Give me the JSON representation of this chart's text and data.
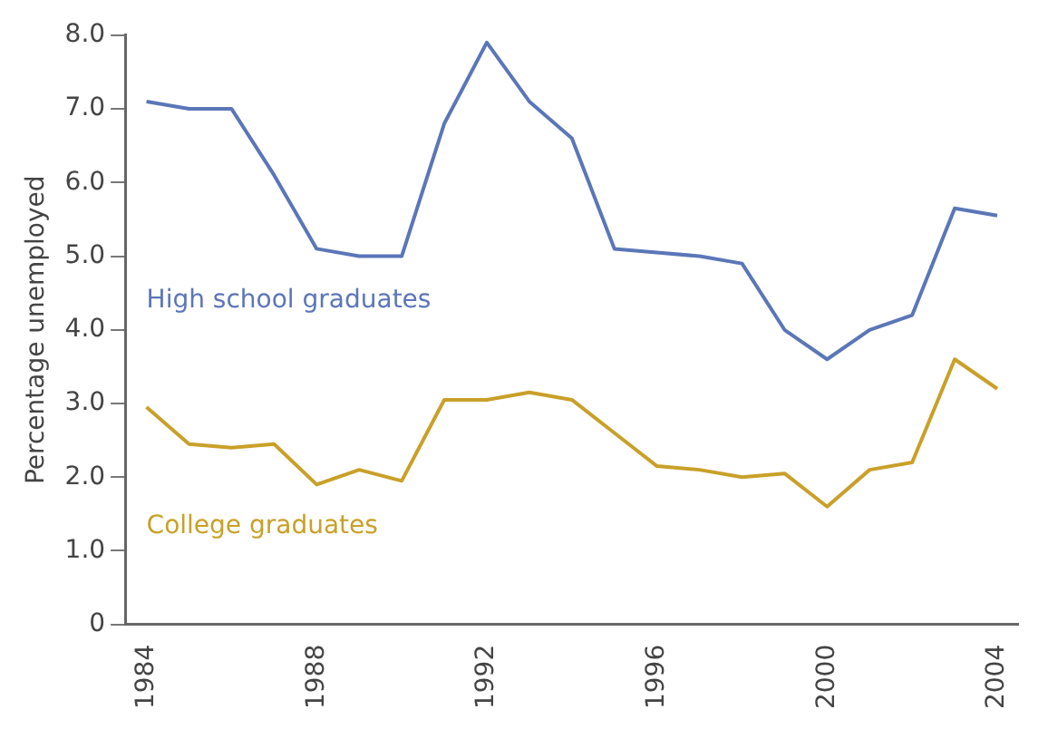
{
  "chart_data": {
    "type": "line",
    "ylabel": "Percentage unemployed",
    "categories": [
      "1984",
      null,
      null,
      null,
      "1988",
      null,
      null,
      null,
      "1992",
      null,
      null,
      null,
      "1996",
      null,
      null,
      null,
      "2000",
      null,
      null,
      null,
      "2004"
    ],
    "series": [
      {
        "name": "High school graduates",
        "color": "#5b76b8",
        "values": [
          7.1,
          7.0,
          7.0,
          6.1,
          5.1,
          5.0,
          5.0,
          6.8,
          7.9,
          7.1,
          6.6,
          5.1,
          5.05,
          5.0,
          4.9,
          4.0,
          3.6,
          4.0,
          4.2,
          5.65,
          5.55
        ]
      },
      {
        "name": "College graduates",
        "color": "#c9a028",
        "values": [
          2.95,
          2.45,
          2.4,
          2.45,
          1.9,
          2.1,
          1.95,
          3.05,
          3.05,
          3.15,
          3.05,
          2.6,
          2.15,
          2.1,
          2.0,
          2.05,
          1.6,
          2.1,
          2.2,
          3.6,
          3.2
        ]
      }
    ],
    "ylim": [
      0,
      8
    ],
    "yticks": [
      0,
      {
        "value": 1,
        "label": "1.0"
      },
      {
        "value": 2,
        "label": "2.0"
      },
      {
        "value": 3,
        "label": "3.0"
      },
      {
        "value": 4,
        "label": "4.0"
      },
      {
        "value": 5,
        "label": "5.0"
      },
      {
        "value": 6,
        "label": "6.0"
      },
      {
        "value": 7,
        "label": "7.0"
      },
      {
        "value": 8,
        "label": "8.0"
      }
    ],
    "grid": false,
    "legend": false,
    "marker": "none",
    "line_style": "solid"
  }
}
